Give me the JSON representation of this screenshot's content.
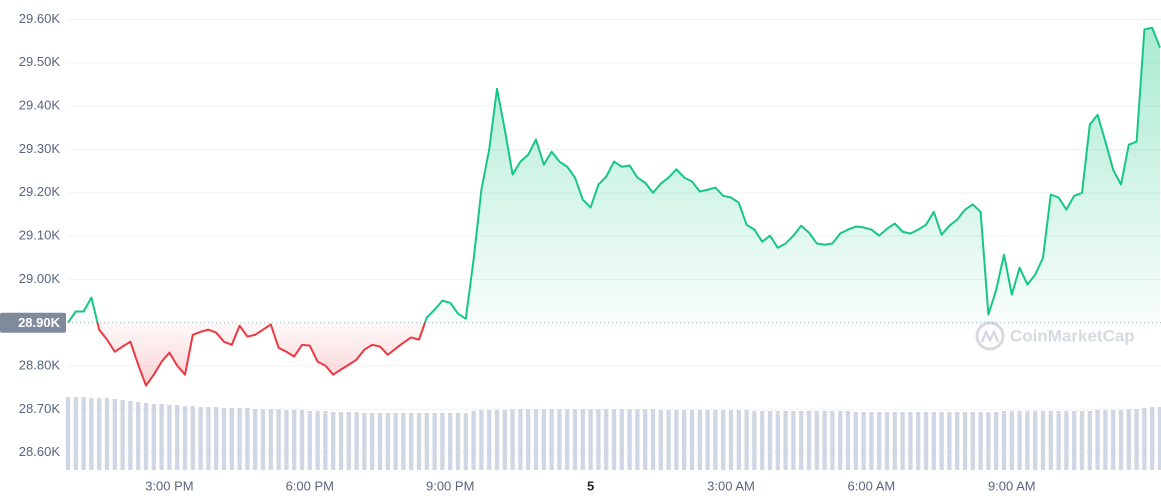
{
  "chart_data": {
    "type": "line",
    "categories": [
      null,
      null,
      null,
      null,
      null,
      null,
      null,
      null,
      null,
      null,
      null,
      null,
      null,
      "3:00 PM",
      null,
      null,
      null,
      null,
      null,
      null,
      null,
      null,
      null,
      null,
      null,
      null,
      null,
      null,
      null,
      null,
      null,
      "6:00 PM",
      null,
      null,
      null,
      null,
      null,
      null,
      null,
      null,
      null,
      null,
      null,
      null,
      null,
      null,
      null,
      null,
      null,
      "9:00 PM",
      null,
      null,
      null,
      null,
      null,
      null,
      null,
      null,
      null,
      null,
      null,
      null,
      null,
      null,
      null,
      null,
      null,
      "5",
      null,
      null,
      null,
      null,
      null,
      null,
      null,
      null,
      null,
      null,
      null,
      null,
      null,
      null,
      null,
      null,
      null,
      "3:00 AM",
      null,
      null,
      null,
      null,
      null,
      null,
      null,
      null,
      null,
      null,
      null,
      null,
      null,
      null,
      null,
      null,
      null,
      "6:00 AM",
      null,
      null,
      null,
      null,
      null,
      null,
      null,
      null,
      null,
      null,
      null,
      null,
      null,
      null,
      null,
      null,
      null,
      "9:00 AM",
      null,
      null,
      null,
      null,
      null,
      null,
      null,
      null,
      null,
      null,
      null,
      null,
      null,
      null,
      null,
      null,
      null,
      null,
      null
    ],
    "values": [
      28900,
      28926,
      28926,
      28958,
      28884,
      28861,
      28833,
      28845,
      28856,
      28803,
      28755,
      28780,
      28810,
      28831,
      28801,
      28780,
      28872,
      28879,
      28884,
      28877,
      28856,
      28849,
      28893,
      28868,
      28872,
      28884,
      28896,
      28842,
      28833,
      28822,
      28849,
      28847,
      28810,
      28801,
      28780,
      28792,
      28803,
      28815,
      28838,
      28849,
      28845,
      28826,
      28840,
      28854,
      28866,
      28861,
      28912,
      28930,
      28951,
      28946,
      28921,
      28909,
      29046,
      29207,
      29300,
      29440,
      29346,
      29242,
      29272,
      29288,
      29323,
      29265,
      29295,
      29272,
      29260,
      29235,
      29184,
      29166,
      29219,
      29237,
      29272,
      29260,
      29263,
      29235,
      29223,
      29200,
      29221,
      29235,
      29254,
      29235,
      29226,
      29203,
      29207,
      29212,
      29193,
      29189,
      29177,
      29126,
      29115,
      29087,
      29101,
      29073,
      29083,
      29101,
      29124,
      29108,
      29083,
      29080,
      29083,
      29106,
      29115,
      29122,
      29120,
      29115,
      29101,
      29117,
      29129,
      29110,
      29106,
      29115,
      29126,
      29156,
      29103,
      29124,
      29138,
      29161,
      29173,
      29156,
      28919,
      28976,
      29057,
      28965,
      29027,
      28988,
      29011,
      29050,
      29196,
      29189,
      29161,
      29193,
      29200,
      29357,
      29380,
      29318,
      29253,
      29219,
      29311,
      29318,
      29577,
      29581,
      29535
    ],
    "volume": [
      73,
      73,
      73,
      72,
      72,
      72,
      71,
      70,
      69,
      68,
      67,
      66,
      66,
      65,
      65,
      64,
      64,
      63,
      63,
      63,
      62,
      62,
      62,
      62,
      61,
      61,
      61,
      61,
      60,
      60,
      60,
      59,
      59,
      59,
      58,
      58,
      58,
      58,
      57,
      57,
      57,
      57,
      57,
      57,
      57,
      57,
      57,
      57,
      57,
      57,
      57,
      57,
      59,
      60,
      60,
      60,
      60,
      61,
      61,
      61,
      61,
      61,
      61,
      61,
      61,
      61,
      61,
      61,
      61,
      61,
      61,
      61,
      61,
      61,
      61,
      61,
      60,
      60,
      60,
      60,
      60,
      60,
      60,
      60,
      60,
      60,
      60,
      60,
      59,
      59,
      59,
      59,
      59,
      59,
      59,
      59,
      59,
      59,
      59,
      59,
      59,
      58,
      58,
      58,
      58,
      58,
      58,
      58,
      58,
      58,
      58,
      58,
      58,
      58,
      58,
      58,
      58,
      58,
      58,
      58,
      59,
      59,
      59,
      59,
      59,
      59,
      59,
      59,
      59,
      59,
      59,
      59,
      60,
      60,
      60,
      60,
      61,
      61,
      62,
      63,
      63
    ],
    "baseline": 28900,
    "color_up": "#16c784",
    "color_down": "#ea3943",
    "volume_color": "#cfd6e4",
    "ylim": [
      28560,
      29645
    ],
    "yticks": [
      {
        "value": 28600,
        "label": "28.60K"
      },
      {
        "value": 28700,
        "label": "28.70K"
      },
      {
        "value": 28800,
        "label": "28.80K"
      },
      {
        "value": 28900,
        "label": "28.90K"
      },
      {
        "value": 29000,
        "label": "29.00K"
      },
      {
        "value": 29100,
        "label": "29.10K"
      },
      {
        "value": 29200,
        "label": "29.20K"
      },
      {
        "value": 29300,
        "label": "29.30K"
      },
      {
        "value": 29400,
        "label": "29.40K"
      },
      {
        "value": 29500,
        "label": "29.50K"
      },
      {
        "value": 29600,
        "label": "29.60K"
      }
    ],
    "grid": true,
    "watermark": "CoinMarketCap"
  }
}
